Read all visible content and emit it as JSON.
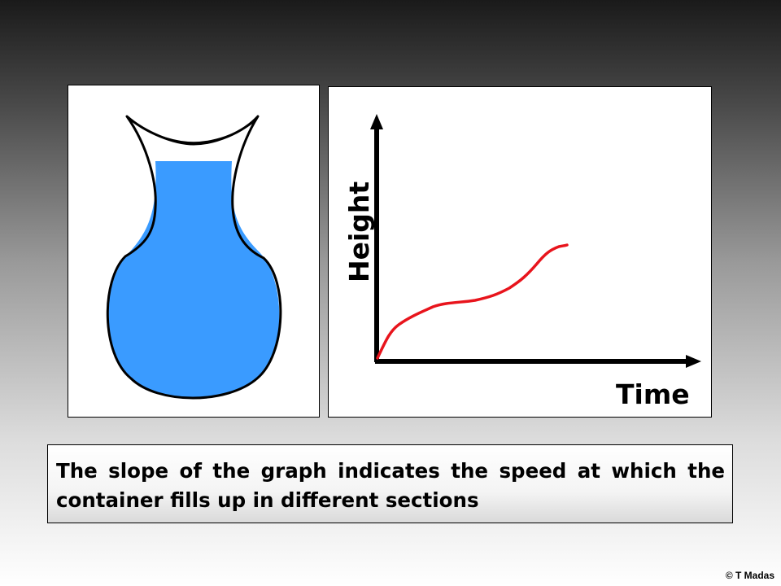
{
  "graph": {
    "ylabel": "Height",
    "xlabel": "Time",
    "curve_color": "#e8141c"
  },
  "vase": {
    "water_color": "#3a9bff",
    "outline_color": "#000000"
  },
  "caption": {
    "text": "The slope of the graph indicates the speed at which the container fills up in different sections"
  },
  "footer": {
    "copyright": "© T Madas"
  }
}
